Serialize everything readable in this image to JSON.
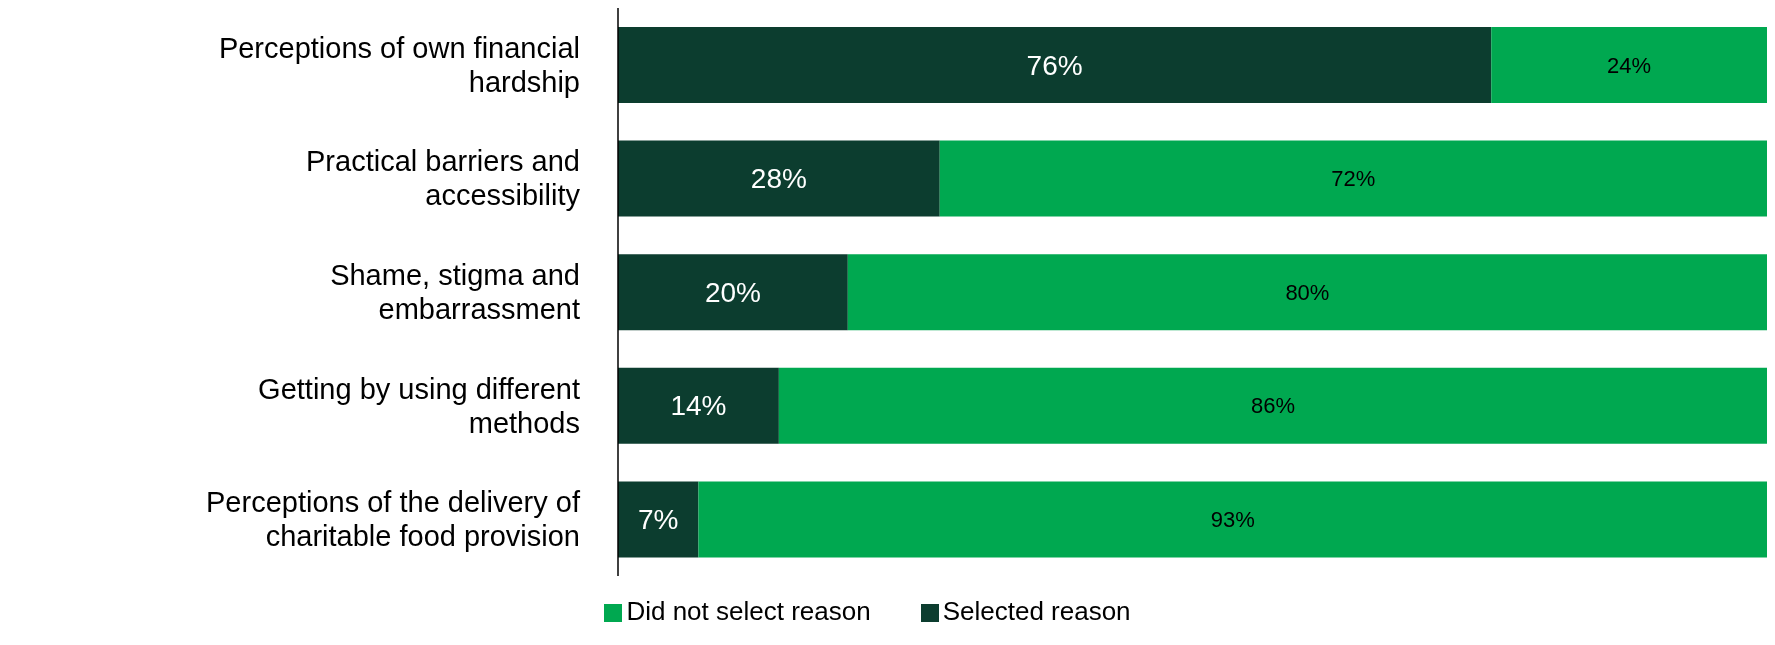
{
  "chart_data": {
    "type": "bar",
    "orientation": "horizontal",
    "stacked": true,
    "categories": [
      "Perceptions of own financial hardship",
      "Practical barriers and accessibility",
      "Shame, stigma and embarrassment",
      "Getting by using different methods",
      "Perceptions of the delivery of charitable food provision"
    ],
    "series": [
      {
        "name": "Selected reason",
        "color": "#0c3d2f",
        "values": [
          76,
          28,
          20,
          14,
          7
        ],
        "value_labels": [
          "76%",
          "28%",
          "20%",
          "14%",
          "7%"
        ]
      },
      {
        "name": "Did not select reason",
        "color": "#00a850",
        "values": [
          24,
          72,
          80,
          86,
          93
        ],
        "value_labels": [
          "24%",
          "72%",
          "80%",
          "86%",
          "93%"
        ]
      }
    ],
    "xlim": [
      0,
      100
    ],
    "tick_labels": "y",
    "grid": false,
    "legend": "bottom"
  }
}
